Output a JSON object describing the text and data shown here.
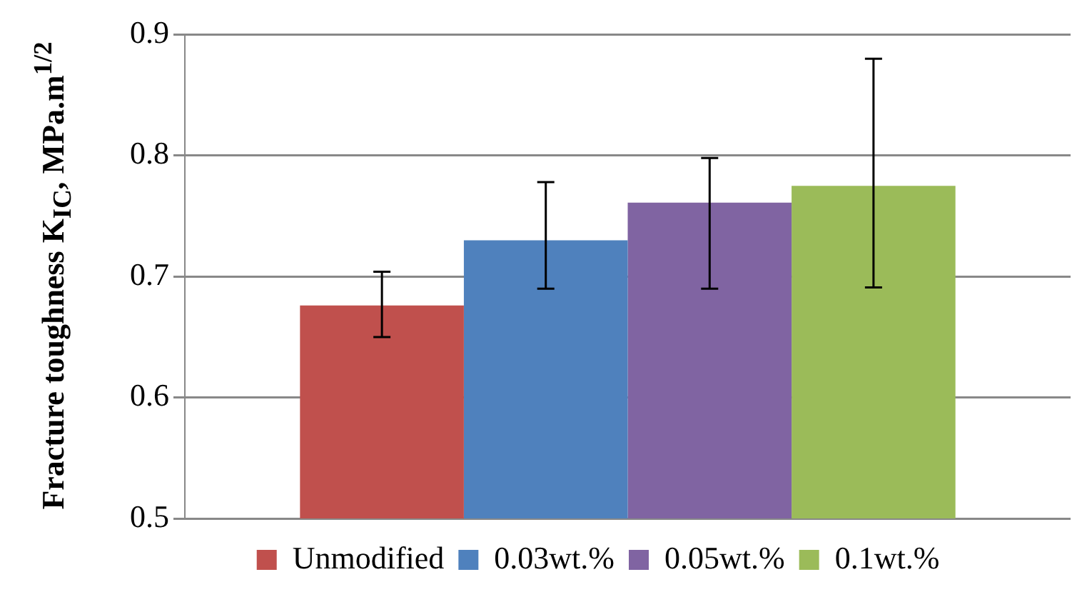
{
  "chart_data": {
    "type": "bar",
    "ylabel": "Fracture toughness K$_{IC}$, MPa.m$^{1/2}$",
    "categories": [
      null
    ],
    "series": [
      {
        "name": "Unmodified",
        "color": "#c0504d",
        "values": [
          0.676
        ],
        "errors": [
          [
            0.65,
            0.704
          ]
        ]
      },
      {
        "name": "0.03wt.%",
        "color": "#4f81bd",
        "values": [
          0.73
        ],
        "errors": [
          [
            0.69,
            0.778
          ]
        ]
      },
      {
        "name": "0.05wt.%",
        "color": "#8064a2",
        "values": [
          0.761
        ],
        "errors": [
          [
            0.69,
            0.798
          ]
        ]
      },
      {
        "name": "0.1wt.%",
        "color": "#9bbb59",
        "values": [
          0.775
        ],
        "errors": [
          [
            0.691,
            0.88
          ]
        ]
      }
    ],
    "ylim": [
      0.5,
      0.9
    ],
    "yticks": [
      0.5,
      0.6,
      0.7,
      0.8,
      0.9
    ],
    "grid": "y",
    "legend": "bottom"
  }
}
